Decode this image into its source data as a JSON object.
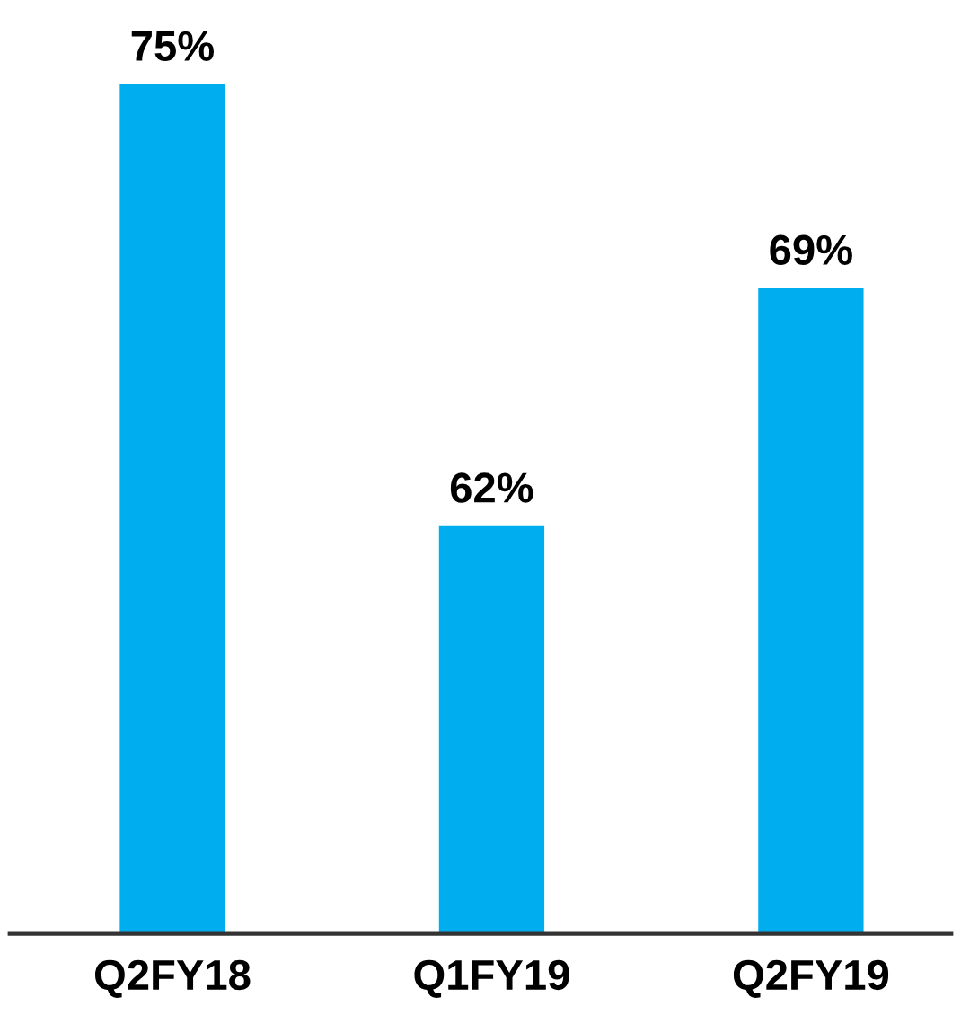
{
  "chart_data": {
    "type": "bar",
    "categories": [
      "Q2FY18",
      "Q1FY19",
      "Q2FY19"
    ],
    "values": [
      75,
      62,
      69
    ],
    "color": "#00aeef",
    "value_labels": [
      "75%",
      "62%",
      "69%"
    ],
    "ylim": [
      50,
      75
    ],
    "tick_labels": "x",
    "grid": false,
    "legend": false
  }
}
